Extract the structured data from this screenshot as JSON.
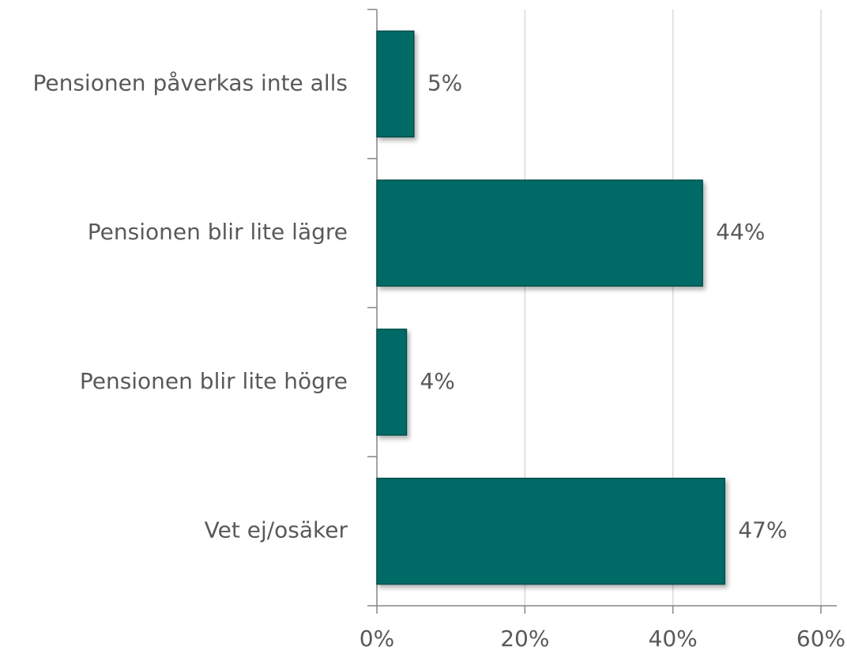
{
  "chart_data": {
    "type": "bar",
    "orientation": "horizontal",
    "categories": [
      "Pensionen påverkas inte alls",
      "Pensionen blir lite lägre",
      "Pensionen blir lite högre",
      "Vet ej/osäker"
    ],
    "values": [
      5,
      44,
      4,
      47
    ],
    "value_labels": [
      "5%",
      "44%",
      "4%",
      "47%"
    ],
    "color": "#006b66",
    "xlim": [
      0,
      60
    ],
    "xticks": [
      {
        "value": 0,
        "label": "0%"
      },
      {
        "value": 20,
        "label": "20%"
      },
      {
        "value": 40,
        "label": "40%"
      },
      {
        "value": 60,
        "label": "60%"
      }
    ],
    "grid": true
  }
}
